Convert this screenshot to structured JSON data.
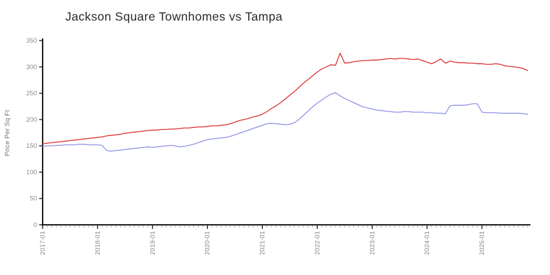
{
  "title": "Jackson Square Townhomes vs Tampa",
  "colors": {
    "background": "#ffffff",
    "axis": "#000000",
    "tick_label": "#8b8b8b",
    "minor_tick": "#b0b0b0",
    "red_series": "#dc3233",
    "blue_series": "#9193e6"
  },
  "chart_data": {
    "type": "line",
    "title": "Jackson Square Townhomes vs Tampa",
    "xlabel": "",
    "ylabel": "Price Per Sq Ft",
    "x_unit": "month",
    "x_start": "2017-01",
    "x_end": "2025-11",
    "n_points": 107,
    "x_tick_labels": [
      "2017-01",
      "2018-01",
      "2019-01",
      "2020-01",
      "2021-01",
      "2022-01",
      "2023-01",
      "2024-01",
      "2025-01"
    ],
    "x_major_tick_interval_months": 12,
    "x_minor_tick_interval_months": 1,
    "y_ticks": [
      0,
      50,
      100,
      150,
      200,
      250,
      300,
      350
    ],
    "ylim": [
      0,
      350
    ],
    "grid": false,
    "legend_position": "none",
    "series": [
      {
        "name": "red-line",
        "color": "#dc3233",
        "values": [
          154,
          155,
          156,
          157,
          158,
          159,
          160,
          161,
          162,
          163,
          164,
          165,
          166,
          167,
          169,
          170,
          171,
          172,
          174,
          175,
          176,
          177,
          178,
          179,
          180,
          180,
          181,
          181,
          182,
          182,
          183,
          184,
          184,
          185,
          186,
          186,
          187,
          188,
          188,
          189,
          190,
          192,
          195,
          198,
          200,
          202,
          205,
          207,
          210,
          215,
          221,
          226,
          232,
          239,
          246,
          253,
          261,
          269,
          276,
          283,
          290,
          296,
          300,
          304,
          303,
          326,
          307,
          308,
          310,
          311,
          312,
          312,
          313,
          313,
          314,
          315,
          316,
          315,
          316,
          316,
          315,
          314,
          315,
          312,
          309,
          306,
          310,
          315,
          307,
          311,
          309,
          308,
          308,
          307,
          307,
          306,
          306,
          305,
          305,
          306,
          305,
          302,
          301,
          300,
          299,
          297,
          293
        ]
      },
      {
        "name": "blue-line",
        "color": "#9193e6",
        "values": [
          149,
          150,
          150,
          151,
          151,
          152,
          152,
          152,
          153,
          153,
          152,
          152,
          152,
          151,
          141,
          140,
          141,
          142,
          143,
          144,
          145,
          146,
          147,
          148,
          147,
          148,
          149,
          150,
          151,
          150,
          148,
          149,
          151,
          153,
          156,
          159,
          162,
          163,
          164,
          165,
          166,
          168,
          171,
          174,
          177,
          180,
          183,
          186,
          189,
          192,
          193,
          192,
          191,
          190,
          191,
          194,
          200,
          208,
          216,
          224,
          231,
          237,
          243,
          248,
          251,
          245,
          240,
          236,
          232,
          228,
          224,
          222,
          220,
          218,
          217,
          216,
          215,
          214,
          214,
          215,
          215,
          214,
          214,
          214,
          213,
          213,
          212,
          212,
          211,
          226,
          227,
          227,
          227,
          228,
          230,
          230,
          214,
          213,
          213,
          213,
          212,
          212,
          212,
          212,
          212,
          211,
          210
        ]
      }
    ]
  }
}
